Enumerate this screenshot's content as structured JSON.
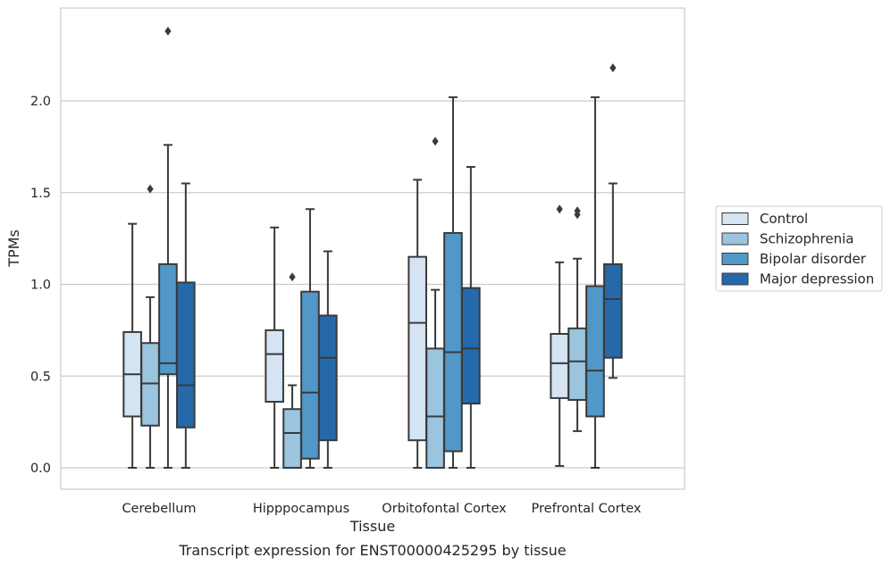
{
  "chart_data": {
    "type": "box",
    "title": "",
    "caption": "Transcript expression for ENST00000425295 by tissue",
    "xlabel": "Tissue",
    "ylabel": "TPMs",
    "ylim": [
      -0.115,
      2.5
    ],
    "yticks": [
      "0.0",
      "0.5",
      "1.0",
      "1.5",
      "2.0"
    ],
    "grid": "horizontal",
    "legend_position": "right",
    "categories": [
      "Cerebellum",
      "Hipppocampus",
      "Orbitofontal Cortex",
      "Prefrontal Cortex"
    ],
    "series": [
      {
        "name": "Control",
        "color": "#d5e4f3",
        "boxes": [
          {
            "min": 0.0,
            "q1": 0.28,
            "median": 0.51,
            "q3": 0.74,
            "max": 1.33,
            "outliers": []
          },
          {
            "min": 0.0,
            "q1": 0.36,
            "median": 0.62,
            "q3": 0.75,
            "max": 1.31,
            "outliers": []
          },
          {
            "min": 0.0,
            "q1": 0.15,
            "median": 0.79,
            "q3": 1.15,
            "max": 1.57,
            "outliers": []
          },
          {
            "min": 0.01,
            "q1": 0.38,
            "median": 0.57,
            "q3": 0.73,
            "max": 1.12,
            "outliers": [
              1.41
            ]
          }
        ]
      },
      {
        "name": "Schizophrenia",
        "color": "#9bc4de",
        "boxes": [
          {
            "min": 0.0,
            "q1": 0.23,
            "median": 0.46,
            "q3": 0.68,
            "max": 0.93,
            "outliers": [
              1.52
            ]
          },
          {
            "min": 0.0,
            "q1": 0.0,
            "median": 0.19,
            "q3": 0.32,
            "max": 0.45,
            "outliers": [
              1.04
            ]
          },
          {
            "min": 0.0,
            "q1": 0.0,
            "median": 0.28,
            "q3": 0.65,
            "max": 0.97,
            "outliers": [
              1.78
            ]
          },
          {
            "min": 0.2,
            "q1": 0.37,
            "median": 0.58,
            "q3": 0.76,
            "max": 1.14,
            "outliers": [
              1.38,
              1.4
            ]
          }
        ]
      },
      {
        "name": "Bipolar disorder",
        "color": "#5198c8",
        "boxes": [
          {
            "min": 0.0,
            "q1": 0.51,
            "median": 0.57,
            "q3": 1.11,
            "max": 1.76,
            "outliers": [
              2.38
            ]
          },
          {
            "min": 0.0,
            "q1": 0.05,
            "median": 0.41,
            "q3": 0.96,
            "max": 1.41,
            "outliers": []
          },
          {
            "min": 0.0,
            "q1": 0.09,
            "median": 0.63,
            "q3": 1.28,
            "max": 2.02,
            "outliers": []
          },
          {
            "min": 0.0,
            "q1": 0.28,
            "median": 0.53,
            "q3": 0.99,
            "max": 2.02,
            "outliers": []
          }
        ]
      },
      {
        "name": "Major depression",
        "color": "#2569aa",
        "boxes": [
          {
            "min": 0.0,
            "q1": 0.22,
            "median": 0.45,
            "q3": 1.01,
            "max": 1.55,
            "outliers": []
          },
          {
            "min": 0.0,
            "q1": 0.15,
            "median": 0.6,
            "q3": 0.83,
            "max": 1.18,
            "outliers": []
          },
          {
            "min": 0.0,
            "q1": 0.35,
            "median": 0.65,
            "q3": 0.98,
            "max": 1.64,
            "outliers": []
          },
          {
            "min": 0.49,
            "q1": 0.6,
            "median": 0.92,
            "q3": 1.11,
            "max": 1.55,
            "outliers": [
              2.18
            ]
          }
        ]
      }
    ]
  }
}
